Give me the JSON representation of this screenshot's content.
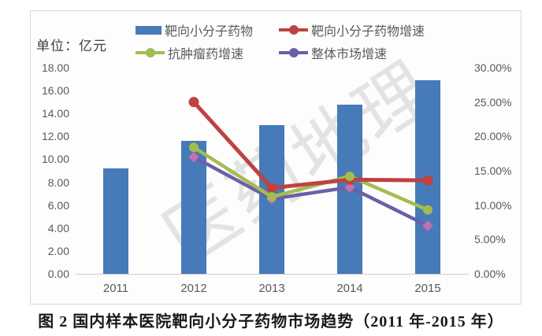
{
  "figure": {
    "unit_label": "单位：亿元",
    "watermark": "医药地理",
    "caption": "图 2  国内样本医院靶向小分子药物市场趋势（2011 年-2015 年）"
  },
  "colors": {
    "bar_blue": "#477ab8",
    "line_red": "#be4240",
    "line_green": "#a2bd50",
    "line_purple": "#6c5fa7",
    "marker_pink": "#c470ae",
    "axis_text": "#595959",
    "frame_border": "#d9d9d9"
  },
  "chart_data": {
    "type": "bar+line combo",
    "title": "",
    "categories": [
      "2011",
      "2012",
      "2013",
      "2014",
      "2015"
    ],
    "series": [
      {
        "key": "target-drugs",
        "name": "靶向小分子药物",
        "type": "bar",
        "axis": "left",
        "unit": "亿元",
        "values": [
          9.2,
          11.6,
          13.0,
          14.8,
          16.9
        ]
      },
      {
        "key": "target-drug-growth",
        "name": "靶向小分子药物增速",
        "type": "line",
        "axis": "right",
        "unit": "%",
        "marker": "circle",
        "values": [
          null,
          25.0,
          12.5,
          13.7,
          13.6
        ]
      },
      {
        "key": "antitumor-growth",
        "name": "抗肿瘤药增速",
        "type": "line",
        "axis": "right",
        "unit": "%",
        "marker": "circle",
        "values": [
          null,
          18.4,
          11.2,
          14.2,
          9.3
        ]
      },
      {
        "key": "overall-market-growth",
        "name": "整体市场增速",
        "type": "line",
        "axis": "right",
        "unit": "%",
        "marker": "diamond",
        "values": [
          null,
          17.0,
          10.9,
          12.6,
          7.0
        ]
      }
    ],
    "left_axis": {
      "min": 0,
      "max": 18,
      "ticks": [
        "18.00",
        "16.00",
        "14.00",
        "12.00",
        "10.00",
        "8.00",
        "6.00",
        "4.00",
        "2.00",
        "0.00"
      ]
    },
    "right_axis": {
      "min": 0,
      "max": 30,
      "ticks": [
        "30.00%",
        "25.00%",
        "20.00%",
        "15.00%",
        "10.00%",
        "5.00%",
        "0.00%"
      ]
    },
    "grid": "off",
    "legend_position": "top"
  }
}
